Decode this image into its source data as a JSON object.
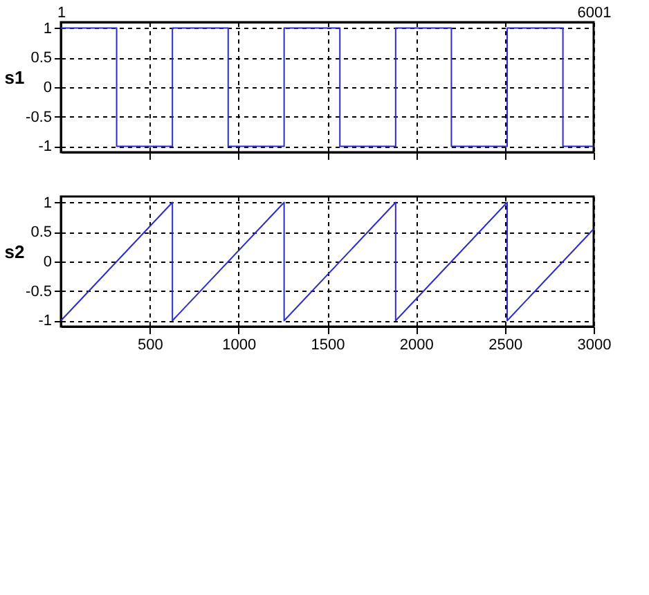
{
  "chart_data": [
    {
      "type": "step",
      "ylabel": "s1",
      "xlim": [
        0,
        3000
      ],
      "xticks": [
        500,
        1000,
        1500,
        2000,
        2500,
        3000
      ],
      "ylim": [
        -1.1,
        1.1
      ],
      "yticks": [
        -1,
        -0.5,
        0,
        0.5,
        1
      ],
      "grid": true,
      "tick_labels": "y",
      "x2lim": [
        1,
        6001
      ],
      "x2ticks": [
        1,
        6001
      ],
      "series": [
        {
          "color": "#2b2bd6",
          "x": [
            0,
            314,
            628,
            942,
            1257,
            1571,
            1885,
            2199,
            2513,
            2827,
            3000
          ],
          "values": [
            1,
            -1,
            1,
            -1,
            1,
            -1,
            1,
            -1,
            1,
            -1,
            -1
          ]
        }
      ]
    },
    {
      "type": "line",
      "ylabel": "s2",
      "xlim": [
        0,
        3000
      ],
      "xticks": [
        500,
        1000,
        1500,
        2000,
        2500,
        3000
      ],
      "ylim": [
        -1.1,
        1.1
      ],
      "yticks": [
        -1,
        -0.5,
        0,
        0.5,
        1
      ],
      "grid": true,
      "series": [
        {
          "color": "#2b2bd6",
          "x": [
            0,
            628,
            628,
            1257,
            1257,
            1885,
            1885,
            2513,
            2513,
            3000
          ],
          "values": [
            -1,
            1,
            -1,
            1,
            -1,
            1,
            -1,
            1,
            -1,
            0.55
          ]
        }
      ]
    }
  ]
}
